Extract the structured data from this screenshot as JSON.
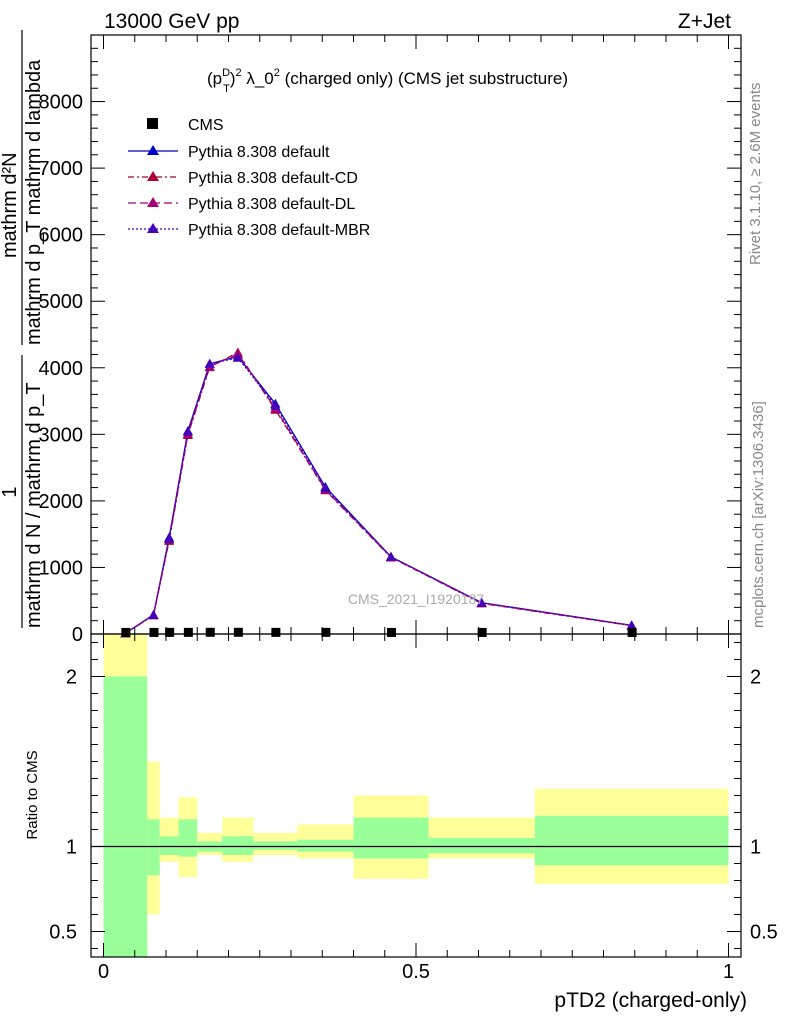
{
  "header": {
    "left": "13000 GeV pp",
    "right": "Z+Jet"
  },
  "side_text": {
    "rivet": "Rivet 3.1.10, ≥ 2.6M events",
    "mcplots": "mcplots.cern.ch [arXiv:1306.3436]"
  },
  "colors": {
    "band_inner": "#99ff99",
    "band_outer": "#ffff99",
    "default": "#0000cc",
    "default_cd": "#aa0033",
    "default_dl": "#aa0077",
    "default_mbr": "#4400bb"
  },
  "chart_data": [
    {
      "type": "line",
      "title_parts": {
        "p": "(p",
        "sup_d": "D",
        "sub_t": "T",
        "close": ")",
        "sup_2": "2",
        "rest": " λ_0",
        "sup_2b": "2",
        "tail": " (charged only) (CMS jet substructure)"
      },
      "ylabel": {
        "num1": "1",
        "den1": "mathrm d N / mathrm d p_T",
        "den1_sub": "T",
        "num2": "mathrm d²N",
        "num2_sup": "2",
        "den2": "mathrm d p_T mathrm d lambda"
      },
      "watermark": "CMS_2021_I1920187",
      "ylim": [
        0,
        9000
      ],
      "yticks": [
        {
          "v": 0,
          "label": "0"
        },
        {
          "v": 1000,
          "label": "1000"
        },
        {
          "v": 2000,
          "label": "2000"
        },
        {
          "v": 3000,
          "label": "3000"
        },
        {
          "v": 4000,
          "label": "4000"
        },
        {
          "v": 5000,
          "label": "5000"
        },
        {
          "v": 6000,
          "label": "6000"
        },
        {
          "v": 7000,
          "label": "7000"
        },
        {
          "v": 8000,
          "label": "8000"
        }
      ],
      "xlim": [
        -0.02,
        1.02
      ],
      "legend_placement": "top-left",
      "cms": {
        "name": "CMS",
        "x": [
          0.035,
          0.08,
          0.105,
          0.135,
          0.17,
          0.215,
          0.275,
          0.355,
          0.46,
          0.605,
          0.845
        ],
        "y": [
          1,
          1,
          2,
          2,
          3,
          3,
          2,
          2,
          1,
          1,
          0
        ]
      },
      "series": [
        {
          "name": "Pythia 8.308 default",
          "key": "default",
          "dash": "",
          "x": [
            0.035,
            0.08,
            0.105,
            0.135,
            0.17,
            0.215,
            0.275,
            0.355,
            0.46,
            0.605,
            0.845
          ],
          "y": [
            10,
            290,
            1450,
            3050,
            4060,
            4170,
            3460,
            2210,
            1160,
            470,
            130
          ]
        },
        {
          "name": "Pythia 8.308 default-CD",
          "key": "default_cd",
          "dash": "6,3,2,3",
          "x": [
            0.035,
            0.08,
            0.105,
            0.135,
            0.17,
            0.215,
            0.275,
            0.355,
            0.46,
            0.605,
            0.845
          ],
          "y": [
            10,
            280,
            1400,
            2990,
            4010,
            4230,
            3370,
            2160,
            1150,
            460,
            125
          ]
        },
        {
          "name": "Pythia 8.308 default-DL",
          "key": "default_dl",
          "dash": "8,4",
          "x": [
            0.035,
            0.08,
            0.105,
            0.135,
            0.17,
            0.215,
            0.275,
            0.355,
            0.46,
            0.605,
            0.845
          ],
          "y": [
            10,
            285,
            1420,
            3010,
            4020,
            4210,
            3390,
            2170,
            1155,
            465,
            128
          ]
        },
        {
          "name": "Pythia 8.308 default-MBR",
          "key": "default_mbr",
          "dash": "2,2",
          "x": [
            0.035,
            0.08,
            0.105,
            0.135,
            0.17,
            0.215,
            0.275,
            0.355,
            0.46,
            0.605,
            0.845
          ],
          "y": [
            10,
            285,
            1430,
            3040,
            4060,
            4150,
            3430,
            2190,
            1160,
            470,
            130
          ]
        }
      ]
    },
    {
      "type": "area",
      "ylabel": "Ratio to CMS",
      "xlabel": "pTD2 (charged-only)",
      "ylim": [
        0.35,
        2.25
      ],
      "yticks": [
        {
          "v": 0.5,
          "label": "0.5"
        },
        {
          "v": 1,
          "label": "1"
        },
        {
          "v": 2,
          "label": "2"
        }
      ],
      "xlim": [
        -0.02,
        1.02
      ],
      "xticks": [
        {
          "v": 0,
          "label": "0"
        },
        {
          "v": 0.5,
          "label": "0.5"
        },
        {
          "v": 1,
          "label": "1"
        }
      ],
      "reference": 1,
      "bins": [
        {
          "lo": 0.0,
          "hi": 0.07,
          "in_lo": 0.3,
          "in_hi": 2.0,
          "out_lo": 0.3,
          "out_hi": 2.3
        },
        {
          "lo": 0.07,
          "hi": 0.09,
          "in_lo": 0.83,
          "in_hi": 1.16,
          "out_lo": 0.6,
          "out_hi": 1.5
        },
        {
          "lo": 0.09,
          "hi": 0.12,
          "in_lo": 0.95,
          "in_hi": 1.06,
          "out_lo": 0.91,
          "out_hi": 1.17
        },
        {
          "lo": 0.12,
          "hi": 0.15,
          "in_lo": 0.94,
          "in_hi": 1.16,
          "out_lo": 0.82,
          "out_hi": 1.29
        },
        {
          "lo": 0.15,
          "hi": 0.19,
          "in_lo": 0.97,
          "in_hi": 1.03,
          "out_lo": 0.95,
          "out_hi": 1.08
        },
        {
          "lo": 0.19,
          "hi": 0.24,
          "in_lo": 0.95,
          "in_hi": 1.06,
          "out_lo": 0.91,
          "out_hi": 1.17
        },
        {
          "lo": 0.24,
          "hi": 0.31,
          "in_lo": 0.98,
          "in_hi": 1.03,
          "out_lo": 0.95,
          "out_hi": 1.08
        },
        {
          "lo": 0.31,
          "hi": 0.4,
          "in_lo": 0.97,
          "in_hi": 1.04,
          "out_lo": 0.93,
          "out_hi": 1.13
        },
        {
          "lo": 0.4,
          "hi": 0.52,
          "in_lo": 0.93,
          "in_hi": 1.17,
          "out_lo": 0.81,
          "out_hi": 1.3
        },
        {
          "lo": 0.52,
          "hi": 0.69,
          "in_lo": 0.96,
          "in_hi": 1.05,
          "out_lo": 0.93,
          "out_hi": 1.17
        },
        {
          "lo": 0.69,
          "hi": 1.0,
          "in_lo": 0.89,
          "in_hi": 1.18,
          "out_lo": 0.78,
          "out_hi": 1.34
        }
      ]
    }
  ]
}
